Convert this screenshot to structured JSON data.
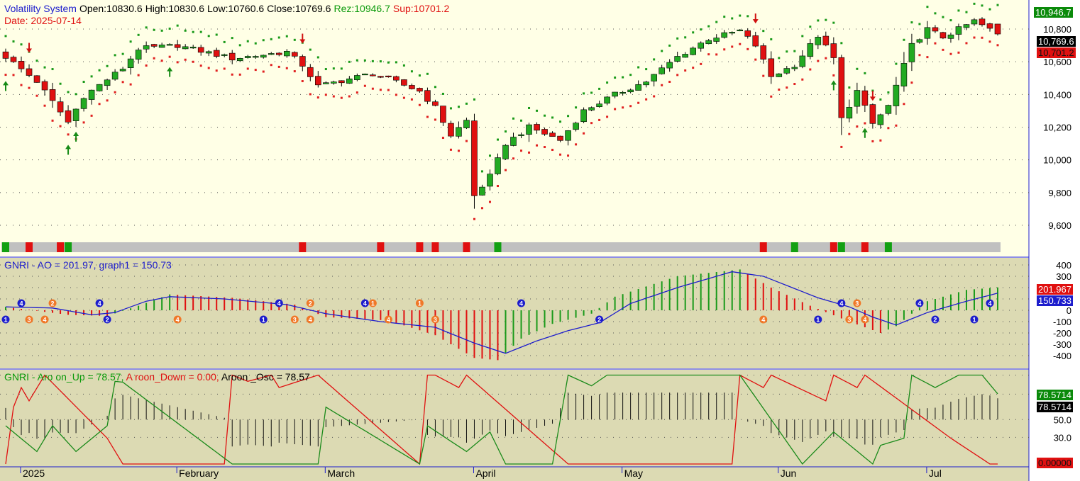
{
  "window": {
    "title": "Volatility System"
  },
  "header": {
    "title": "Volatility System",
    "open": "Open:10830.6",
    "high": "High:10830.6",
    "low": "Low:10760.6",
    "close": "Close:10769.6",
    "rez": "Rez:10946.7",
    "sup": "Sup:10701.2",
    "date": "Date: 2025-07-14"
  },
  "pane2": {
    "legend": "GNRI - AO = 201.97, graph1 = 150.73"
  },
  "pane3": {
    "legend_prefix": "GNRI - Aro on_Up = 78.57, ",
    "legend_down": "A roon_Down = 0.00, ",
    "legend_osc": "Aroon _Osc = 78.57"
  },
  "tags": {
    "rez": "10,946.7",
    "close": "10,769.6",
    "sup": "10,701.2",
    "ao": "201.967",
    "graph1": "150.733",
    "aroon_up": "78.5714",
    "aroon_osc": "78.5714",
    "aroon_down": "0.00000"
  },
  "colors": {
    "background": "#ffffe6",
    "lower_background": "#dcdab3",
    "up_candle": "#22aa22",
    "down_candle": "#e01010",
    "resistance_dots": "#1a9a1a",
    "support_dots": "#e02020",
    "ao_signal": "#1d1dcc",
    "aroon_up": "#1a8a1a",
    "aroon_down": "#e01010"
  },
  "chart_data": [
    {
      "type": "candlestick",
      "title": "Volatility System",
      "ylim": [
        9500,
        11000
      ],
      "yticks": [
        "9,600",
        "9,800",
        "10,000",
        "10,200",
        "10,400",
        "10,600",
        "10,800"
      ],
      "xticks": [
        "2025",
        "February",
        "March",
        "April",
        "May",
        "Jun",
        "Jul"
      ],
      "last": {
        "open": 10830.6,
        "high": 10830.6,
        "low": 10760.6,
        "close": 10769.6,
        "resistance": 10946.7,
        "support": 10701.2
      },
      "close_path": [
        {
          "t": 0,
          "v": 10630
        },
        {
          "t": 4,
          "v": 10480
        },
        {
          "t": 8,
          "v": 10230
        },
        {
          "t": 10,
          "v": 10390
        },
        {
          "t": 15,
          "v": 10560
        },
        {
          "t": 17,
          "v": 10680
        },
        {
          "t": 22,
          "v": 10700
        },
        {
          "t": 29,
          "v": 10620
        },
        {
          "t": 36,
          "v": 10660
        },
        {
          "t": 38,
          "v": 10580
        },
        {
          "t": 40,
          "v": 10450
        },
        {
          "t": 47,
          "v": 10530
        },
        {
          "t": 53,
          "v": 10420
        },
        {
          "t": 55,
          "v": 10320
        },
        {
          "t": 57,
          "v": 10150
        },
        {
          "t": 59,
          "v": 10240
        },
        {
          "t": 60,
          "v": 9780
        },
        {
          "t": 62,
          "v": 9900
        },
        {
          "t": 64,
          "v": 10100
        },
        {
          "t": 67,
          "v": 10200
        },
        {
          "t": 71,
          "v": 10120
        },
        {
          "t": 74,
          "v": 10300
        },
        {
          "t": 78,
          "v": 10400
        },
        {
          "t": 82,
          "v": 10480
        },
        {
          "t": 86,
          "v": 10630
        },
        {
          "t": 90,
          "v": 10740
        },
        {
          "t": 94,
          "v": 10790
        },
        {
          "t": 96,
          "v": 10700
        },
        {
          "t": 98,
          "v": 10510
        },
        {
          "t": 101,
          "v": 10580
        },
        {
          "t": 104,
          "v": 10760
        },
        {
          "t": 106,
          "v": 10620
        },
        {
          "t": 107,
          "v": 10250
        },
        {
          "t": 109,
          "v": 10420
        },
        {
          "t": 111,
          "v": 10220
        },
        {
          "t": 113,
          "v": 10330
        },
        {
          "t": 116,
          "v": 10700
        },
        {
          "t": 118,
          "v": 10800
        },
        {
          "t": 120,
          "v": 10750
        },
        {
          "t": 124,
          "v": 10850
        },
        {
          "t": 127,
          "v": 10770
        }
      ]
    },
    {
      "type": "bar",
      "title": "GNRI - AO",
      "ylim": [
        -500,
        450
      ],
      "yticks": [
        "400",
        "300",
        "200",
        "100",
        "0",
        "-100",
        "-200",
        "-300",
        "-400"
      ],
      "ao_path": [
        {
          "t": 0,
          "v": 30
        },
        {
          "t": 8,
          "v": -40
        },
        {
          "t": 13,
          "v": -50
        },
        {
          "t": 17,
          "v": 40
        },
        {
          "t": 21,
          "v": 140
        },
        {
          "t": 29,
          "v": 110
        },
        {
          "t": 37,
          "v": 50
        },
        {
          "t": 41,
          "v": -60
        },
        {
          "t": 49,
          "v": -90
        },
        {
          "t": 55,
          "v": -220
        },
        {
          "t": 60,
          "v": -420
        },
        {
          "t": 63,
          "v": -440
        },
        {
          "t": 66,
          "v": -250
        },
        {
          "t": 70,
          "v": -120
        },
        {
          "t": 75,
          "v": -30
        },
        {
          "t": 78,
          "v": 120
        },
        {
          "t": 86,
          "v": 300
        },
        {
          "t": 94,
          "v": 360
        },
        {
          "t": 98,
          "v": 200
        },
        {
          "t": 103,
          "v": 40
        },
        {
          "t": 108,
          "v": -100
        },
        {
          "t": 112,
          "v": -200
        },
        {
          "t": 114,
          "v": -140
        },
        {
          "t": 118,
          "v": 80
        },
        {
          "t": 123,
          "v": 180
        },
        {
          "t": 127,
          "v": 202
        }
      ],
      "signal_path": [
        {
          "t": 0,
          "v": 30
        },
        {
          "t": 6,
          "v": 20
        },
        {
          "t": 11,
          "v": -40
        },
        {
          "t": 14,
          "v": -20
        },
        {
          "t": 18,
          "v": 80
        },
        {
          "t": 21,
          "v": 120
        },
        {
          "t": 28,
          "v": 100
        },
        {
          "t": 36,
          "v": 50
        },
        {
          "t": 41,
          "v": -30
        },
        {
          "t": 48,
          "v": -100
        },
        {
          "t": 55,
          "v": -150
        },
        {
          "t": 60,
          "v": -290
        },
        {
          "t": 64,
          "v": -380
        },
        {
          "t": 68,
          "v": -270
        },
        {
          "t": 72,
          "v": -180
        },
        {
          "t": 76,
          "v": -110
        },
        {
          "t": 80,
          "v": 60
        },
        {
          "t": 86,
          "v": 200
        },
        {
          "t": 93,
          "v": 340
        },
        {
          "t": 97,
          "v": 300
        },
        {
          "t": 104,
          "v": 110
        },
        {
          "t": 108,
          "v": 30
        },
        {
          "t": 111,
          "v": -60
        },
        {
          "t": 114,
          "v": -130
        },
        {
          "t": 118,
          "v": -20
        },
        {
          "t": 123,
          "v": 80
        },
        {
          "t": 127,
          "v": 151
        }
      ],
      "labels": [
        {
          "t": 0,
          "n": "1",
          "c": "blue",
          "pos": "low"
        },
        {
          "t": 2,
          "n": "4",
          "c": "blue",
          "pos": "high"
        },
        {
          "t": 3,
          "n": "3",
          "c": "orange",
          "pos": "low"
        },
        {
          "t": 5,
          "n": "4",
          "c": "orange",
          "pos": "low"
        },
        {
          "t": 6,
          "n": "2",
          "c": "orange",
          "pos": "high"
        },
        {
          "t": 12,
          "n": "4",
          "c": "blue",
          "pos": "high"
        },
        {
          "t": 13,
          "n": "2",
          "c": "blue",
          "pos": "low"
        },
        {
          "t": 22,
          "n": "4",
          "c": "orange",
          "pos": "low"
        },
        {
          "t": 33,
          "n": "1",
          "c": "blue",
          "pos": "low"
        },
        {
          "t": 35,
          "n": "4",
          "c": "blue",
          "pos": "high"
        },
        {
          "t": 37,
          "n": "3",
          "c": "orange",
          "pos": "low"
        },
        {
          "t": 39,
          "n": "2",
          "c": "orange",
          "pos": "high"
        },
        {
          "t": 39,
          "n": "4",
          "c": "orange",
          "pos": "low"
        },
        {
          "t": 46,
          "n": "4",
          "c": "blue",
          "pos": "high"
        },
        {
          "t": 47,
          "n": "1",
          "c": "orange",
          "pos": "high"
        },
        {
          "t": 49,
          "n": "4",
          "c": "orange",
          "pos": "low"
        },
        {
          "t": 53,
          "n": "1",
          "c": "orange",
          "pos": "high"
        },
        {
          "t": 55,
          "n": "3",
          "c": "orange",
          "pos": "low"
        },
        {
          "t": 66,
          "n": "4",
          "c": "blue",
          "pos": "high"
        },
        {
          "t": 76,
          "n": "2",
          "c": "blue",
          "pos": "low"
        },
        {
          "t": 97,
          "n": "4",
          "c": "orange",
          "pos": "low"
        },
        {
          "t": 104,
          "n": "1",
          "c": "blue",
          "pos": "low"
        },
        {
          "t": 107,
          "n": "4",
          "c": "blue",
          "pos": "high"
        },
        {
          "t": 108,
          "n": "3",
          "c": "orange",
          "pos": "low"
        },
        {
          "t": 109,
          "n": "3",
          "c": "orange",
          "pos": "high"
        },
        {
          "t": 110,
          "n": "4",
          "c": "orange",
          "pos": "low"
        },
        {
          "t": 117,
          "n": "4",
          "c": "blue",
          "pos": "high"
        },
        {
          "t": 119,
          "n": "2",
          "c": "blue",
          "pos": "low"
        },
        {
          "t": 124,
          "n": "1",
          "c": "blue",
          "pos": "low"
        },
        {
          "t": 126,
          "n": "4",
          "c": "blue",
          "pos": "high"
        }
      ]
    },
    {
      "type": "line",
      "title": "GNRI - Aroon",
      "ylim": [
        0,
        110
      ],
      "yticks": [
        "50.0",
        "30.0"
      ],
      "series": [
        {
          "name": "Aro on_Up",
          "points": [
            {
              "t": 0,
              "v": 43
            },
            {
              "t": 4,
              "v": 14
            },
            {
              "t": 6,
              "v": 43
            },
            {
              "t": 9,
              "v": 14
            },
            {
              "t": 13,
              "v": 43
            },
            {
              "t": 14,
              "v": 93
            },
            {
              "t": 15,
              "v": 92
            },
            {
              "t": 29,
              "v": 0
            },
            {
              "t": 40,
              "v": 0
            },
            {
              "t": 41,
              "v": 64
            },
            {
              "t": 53,
              "v": 0
            },
            {
              "t": 54,
              "v": 43
            },
            {
              "t": 59,
              "v": 14
            },
            {
              "t": 62,
              "v": 36
            },
            {
              "t": 64,
              "v": 0
            },
            {
              "t": 70,
              "v": 0
            },
            {
              "t": 72,
              "v": 100
            },
            {
              "t": 75,
              "v": 88
            },
            {
              "t": 77,
              "v": 100
            },
            {
              "t": 80,
              "v": 100
            },
            {
              "t": 90,
              "v": 100
            },
            {
              "t": 94,
              "v": 100
            },
            {
              "t": 102,
              "v": 0
            },
            {
              "t": 106,
              "v": 36
            },
            {
              "t": 111,
              "v": 0
            },
            {
              "t": 112,
              "v": 21
            },
            {
              "t": 115,
              "v": 29
            },
            {
              "t": 116,
              "v": 100
            },
            {
              "t": 119,
              "v": 86
            },
            {
              "t": 122,
              "v": 100
            },
            {
              "t": 125,
              "v": 100
            },
            {
              "t": 127,
              "v": 79
            }
          ]
        },
        {
          "name": "A roon_Down",
          "points": [
            {
              "t": 0,
              "v": 0
            },
            {
              "t": 1,
              "v": 64
            },
            {
              "t": 2,
              "v": 86
            },
            {
              "t": 3,
              "v": 71
            },
            {
              "t": 5,
              "v": 100
            },
            {
              "t": 13,
              "v": 29
            },
            {
              "t": 15,
              "v": 0
            },
            {
              "t": 28,
              "v": 0
            },
            {
              "t": 29,
              "v": 100
            },
            {
              "t": 31,
              "v": 93
            },
            {
              "t": 34,
              "v": 100
            },
            {
              "t": 35,
              "v": 86
            },
            {
              "t": 40,
              "v": 100
            },
            {
              "t": 53,
              "v": 0
            },
            {
              "t": 54,
              "v": 100
            },
            {
              "t": 55,
              "v": 100
            },
            {
              "t": 58,
              "v": 86
            },
            {
              "t": 59,
              "v": 100
            },
            {
              "t": 72,
              "v": 0
            },
            {
              "t": 83,
              "v": 0
            },
            {
              "t": 93,
              "v": 0
            },
            {
              "t": 94,
              "v": 100
            },
            {
              "t": 97,
              "v": 86
            },
            {
              "t": 98,
              "v": 100
            },
            {
              "t": 105,
              "v": 71
            },
            {
              "t": 106,
              "v": 100
            },
            {
              "t": 109,
              "v": 86
            },
            {
              "t": 110,
              "v": 100
            },
            {
              "t": 121,
              "v": 29
            },
            {
              "t": 126,
              "v": 0
            },
            {
              "t": 127,
              "v": 0
            }
          ]
        }
      ]
    }
  ]
}
